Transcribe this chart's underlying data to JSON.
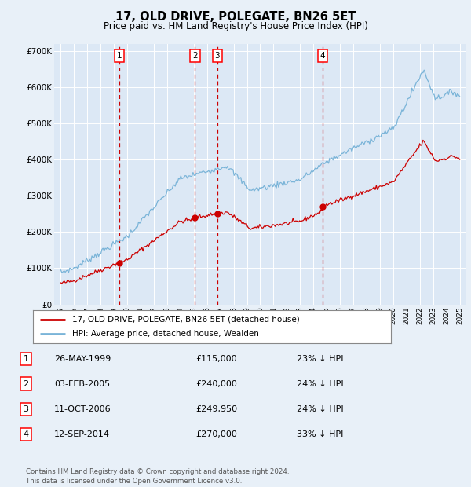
{
  "title": "17, OLD DRIVE, POLEGATE, BN26 5ET",
  "subtitle": "Price paid vs. HM Land Registry's House Price Index (HPI)",
  "background_color": "#e8f0f8",
  "plot_bg_color": "#dce8f5",
  "ylim": [
    0,
    720000
  ],
  "yticks": [
    0,
    100000,
    200000,
    300000,
    400000,
    500000,
    600000,
    700000
  ],
  "ytick_labels": [
    "£0",
    "£100K",
    "£200K",
    "£300K",
    "£400K",
    "£500K",
    "£600K",
    "£700K"
  ],
  "hpi_color": "#7ab4d8",
  "price_color": "#cc0000",
  "vline_color": "#cc0000",
  "transactions": [
    {
      "label": "1",
      "date_str": "26-MAY-1999",
      "year": 1999.39,
      "price": 115000,
      "pct": "23%",
      "dir": "↓"
    },
    {
      "label": "2",
      "date_str": "03-FEB-2005",
      "year": 2005.09,
      "price": 240000,
      "pct": "24%",
      "dir": "↓"
    },
    {
      "label": "3",
      "date_str": "11-OCT-2006",
      "year": 2006.78,
      "price": 249950,
      "pct": "24%",
      "dir": "↓"
    },
    {
      "label": "4",
      "date_str": "12-SEP-2014",
      "year": 2014.7,
      "price": 270000,
      "pct": "33%",
      "dir": "↓"
    }
  ],
  "legend_label_price": "17, OLD DRIVE, POLEGATE, BN26 5ET (detached house)",
  "legend_label_hpi": "HPI: Average price, detached house, Wealden",
  "footer": "Contains HM Land Registry data © Crown copyright and database right 2024.\nThis data is licensed under the Open Government Licence v3.0.",
  "xlim_start": 1994.5,
  "xlim_end": 2025.5
}
